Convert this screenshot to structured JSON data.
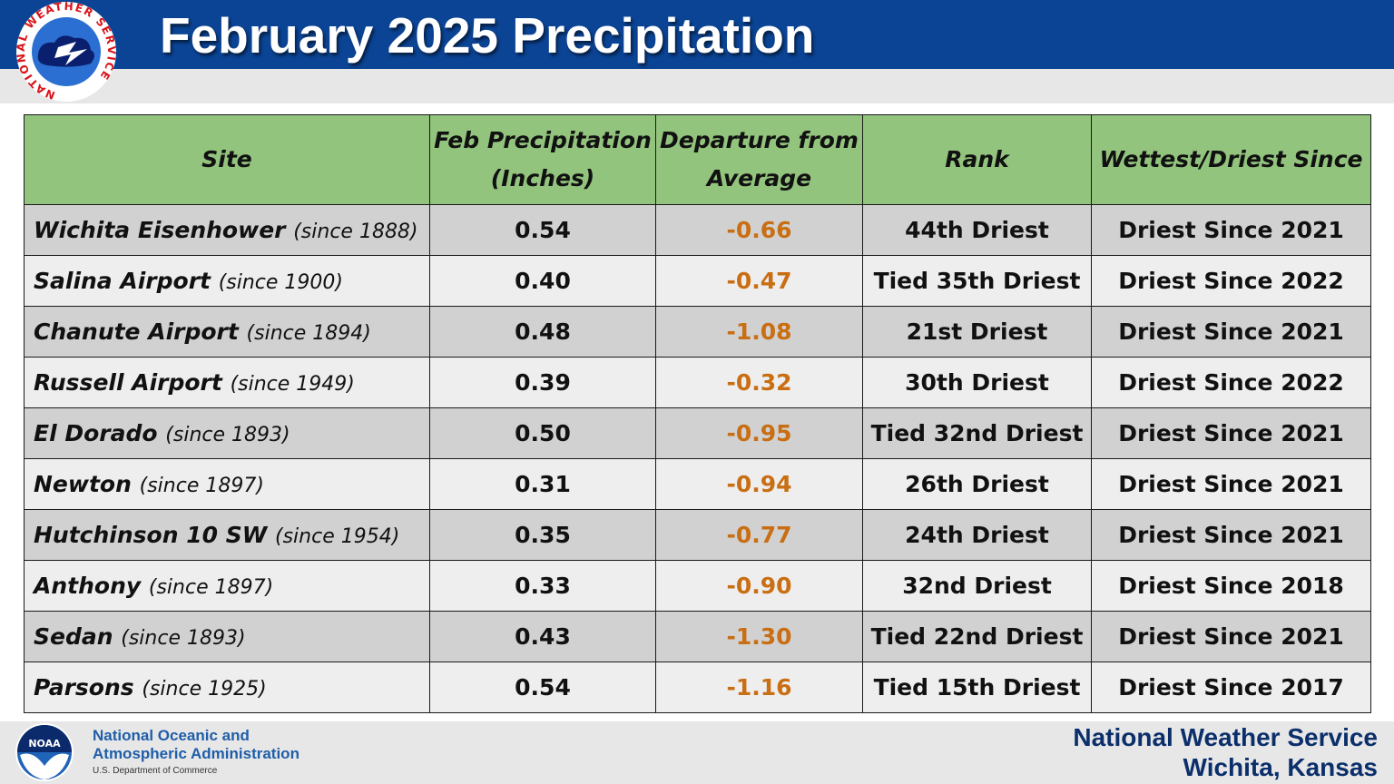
{
  "header": {
    "title": "February 2025 Precipitation",
    "logo_ring_text": "NATIONAL WEATHER SERVICE"
  },
  "table": {
    "columns": [
      "Site",
      "Feb Precipitation (Inches)",
      "Departure from Average",
      "Rank",
      "Wettest/Driest Since"
    ],
    "rows": [
      {
        "site": "Wichita Eisenhower",
        "since": "(since 1888)",
        "precip": "0.54",
        "departure": "-0.66",
        "rank": "44th Driest",
        "since_text": "Driest Since 2021"
      },
      {
        "site": "Salina Airport",
        "since": "(since 1900)",
        "precip": "0.40",
        "departure": "-0.47",
        "rank": "Tied 35th Driest",
        "since_text": "Driest Since 2022"
      },
      {
        "site": "Chanute Airport",
        "since": "(since 1894)",
        "precip": "0.48",
        "departure": "-1.08",
        "rank": "21st Driest",
        "since_text": "Driest Since 2021"
      },
      {
        "site": "Russell Airport",
        "since": "(since 1949)",
        "precip": "0.39",
        "departure": "-0.32",
        "rank": "30th Driest",
        "since_text": "Driest Since 2022"
      },
      {
        "site": "El Dorado",
        "since": "(since 1893)",
        "precip": "0.50",
        "departure": "-0.95",
        "rank": "Tied 32nd Driest",
        "since_text": "Driest Since 2021"
      },
      {
        "site": "Newton",
        "since": "(since 1897)",
        "precip": "0.31",
        "departure": "-0.94",
        "rank": "26th Driest",
        "since_text": "Driest Since 2021"
      },
      {
        "site": "Hutchinson 10 SW",
        "since": "(since 1954)",
        "precip": "0.35",
        "departure": "-0.77",
        "rank": "24th Driest",
        "since_text": "Driest Since 2021"
      },
      {
        "site": "Anthony",
        "since": "(since 1897)",
        "precip": "0.33",
        "departure": "-0.90",
        "rank": "32nd Driest",
        "since_text": "Driest Since 2018"
      },
      {
        "site": "Sedan",
        "since": "(since 1893)",
        "precip": "0.43",
        "departure": "-1.30",
        "rank": "Tied 22nd Driest",
        "since_text": "Driest Since 2021"
      },
      {
        "site": "Parsons",
        "since": "(since 1925)",
        "precip": "0.54",
        "departure": "-1.16",
        "rank": "Tied 15th Driest",
        "since_text": "Driest Since 2017"
      }
    ]
  },
  "footer": {
    "noaa_logo_text": "NOAA",
    "noaa_line1": "National Oceanic and",
    "noaa_line2": "Atmospheric Administration",
    "noaa_line3": "U.S. Department of Commerce",
    "office_line1": "National Weather Service",
    "office_line2": "Wichita, Kansas"
  },
  "colors": {
    "header_blue": "#0b4495",
    "table_header_green": "#93c47d",
    "row_dark": "#d1d1d1",
    "row_light": "#eeeeee",
    "departure_orange": "#c96e12",
    "office_navy": "#0b2f6b"
  }
}
